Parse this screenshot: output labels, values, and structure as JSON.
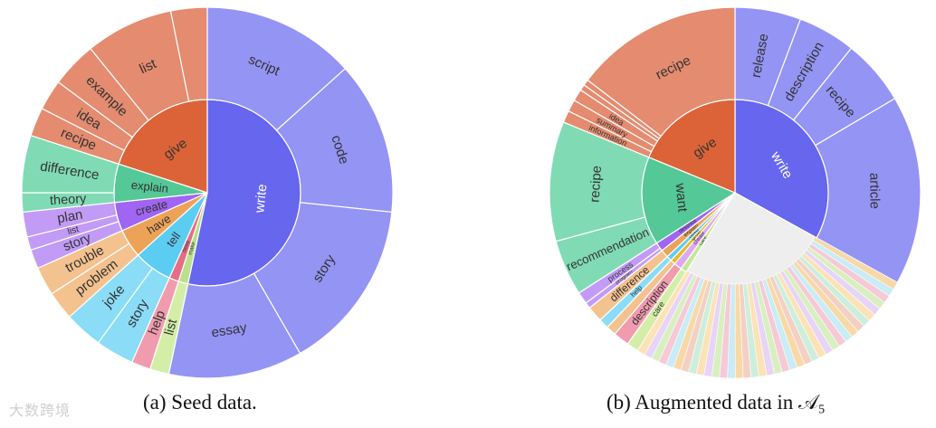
{
  "captions": [
    "(a) Seed data.",
    "(b) Augmented data in 𝒜₅"
  ],
  "watermark": "大数跨境",
  "chart_data": [
    {
      "type": "sunburst",
      "caption": "(a) Seed data.",
      "levels": [
        "verb",
        "noun"
      ],
      "children": [
        {
          "name": "write",
          "value": 32,
          "color": "#6666ee",
          "children": [
            {
              "name": "script",
              "value": 8,
              "color": "#9494f5"
            },
            {
              "name": "code",
              "value": 8,
              "color": "#9494f5"
            },
            {
              "name": "story",
              "value": 9,
              "color": "#9494f5"
            },
            {
              "name": "essay",
              "value": 7,
              "color": "#9494f5"
            }
          ]
        },
        {
          "name": "make",
          "value": 1,
          "color": "#b9e08a",
          "children": [
            {
              "name": "list",
              "value": 1,
              "color": "#d4eea8"
            }
          ]
        },
        {
          "name": "need",
          "value": 1,
          "color": "#e56d85",
          "children": [
            {
              "name": "help",
              "value": 1,
              "color": "#f19cae"
            }
          ]
        },
        {
          "name": "tell",
          "value": 4,
          "color": "#5ccdf2",
          "children": [
            {
              "name": "story",
              "value": 2,
              "color": "#8adcf7"
            },
            {
              "name": "joke",
              "value": 2,
              "color": "#8adcf7"
            }
          ]
        },
        {
          "name": "have",
          "value": 3,
          "color": "#eda357",
          "children": [
            {
              "name": "problem",
              "value": 1.5,
              "color": "#f4c28f"
            },
            {
              "name": "trouble",
              "value": 1.5,
              "color": "#f4c28f"
            }
          ]
        },
        {
          "name": "create",
          "value": 3,
          "color": "#a065f2",
          "children": [
            {
              "name": "story",
              "value": 1,
              "color": "#c29bf7"
            },
            {
              "name": "list",
              "value": 0.7,
              "color": "#c29bf7"
            },
            {
              "name": "plan",
              "value": 1.3,
              "color": "#c29bf7"
            }
          ]
        },
        {
          "name": "explain",
          "value": 4,
          "color": "#54c896",
          "children": [
            {
              "name": "theory",
              "value": 1,
              "color": "#80dbb4"
            },
            {
              "name": "difference",
              "value": 3,
              "color": "#80dbb4"
            }
          ]
        },
        {
          "name": "give",
          "value": 12,
          "color": "#dc6338",
          "children": [
            {
              "name": "recipe",
              "value": 1.5,
              "color": "#e48b70"
            },
            {
              "name": "idea",
              "value": 1.6,
              "color": "#e48b70"
            },
            {
              "name": "example",
              "value": 2.4,
              "color": "#e48b70"
            },
            {
              "name": "list",
              "value": 4.6,
              "color": "#e48b70"
            },
            {
              "name": "",
              "value": 1.9,
              "color": "#e48b70"
            }
          ]
        }
      ]
    },
    {
      "type": "sunburst",
      "caption": "(b) Augmented data in 𝒜₅",
      "levels": [
        "verb",
        "noun"
      ],
      "children": [
        {
          "name": "write",
          "value": 190,
          "color": "#6666ee",
          "children": [
            {
              "name": "release",
              "value": 33,
              "color": "#9494f5"
            },
            {
              "name": "description",
              "value": 29,
              "color": "#9494f5"
            },
            {
              "name": "recipe",
              "value": 33,
              "color": "#9494f5"
            },
            {
              "name": "article",
              "value": 95,
              "color": "#9494f5"
            }
          ]
        },
        {
          "name": "",
          "value": 148,
          "color": "#eeeeee",
          "children": [],
          "note": "many small categories"
        },
        {
          "name": "care",
          "value": 6,
          "color": "#c4e79a",
          "children": [
            {
              "name": "care",
              "value": 6,
              "color": "#d4eea8"
            }
          ]
        },
        {
          "name": "create",
          "value": 8,
          "color": "#e0a8f0",
          "children": [
            {
              "name": "description",
              "value": 8,
              "color": "#f19cae"
            }
          ]
        },
        {
          "name": "grow",
          "value": 5,
          "color": "#e8b830",
          "children": [
            {
              "name": "",
              "value": 5,
              "color": "#f4c28f"
            }
          ]
        },
        {
          "name": "need",
          "value": 5,
          "color": "#5ccdf2",
          "children": [
            {
              "name": "help",
              "value": 5,
              "color": "#8adcf7"
            }
          ]
        },
        {
          "name": "explain",
          "value": 8,
          "color": "#eda357",
          "children": [
            {
              "name": "difference",
              "value": 8,
              "color": "#f4c28f"
            }
          ]
        },
        {
          "name": "describe",
          "value": 9,
          "color": "#a065f2",
          "children": [
            {
              "name": "program",
              "value": 3,
              "color": "#c29bf7"
            },
            {
              "name": "process",
              "value": 6,
              "color": "#c29bf7"
            }
          ]
        },
        {
          "name": "want",
          "value": 88,
          "color": "#54c896",
          "children": [
            {
              "name": "recommendation",
              "value": 28,
              "color": "#80dbb4"
            },
            {
              "name": "recipe",
              "value": 60,
              "color": "#80dbb4"
            }
          ]
        },
        {
          "name": "give",
          "value": 108,
          "color": "#dc6338",
          "children": [
            {
              "name": "information",
              "value": 6,
              "color": "#e48b70"
            },
            {
              "name": "summary",
              "value": 6,
              "color": "#e48b70"
            },
            {
              "name": "idea",
              "value": 6,
              "color": "#e48b70"
            },
            {
              "name": "",
              "value": 3,
              "color": "#e48b70"
            },
            {
              "name": "",
              "value": 3,
              "color": "#e48b70"
            },
            {
              "name": "recipe",
              "value": 84,
              "color": "#e48b70"
            }
          ]
        }
      ]
    }
  ]
}
